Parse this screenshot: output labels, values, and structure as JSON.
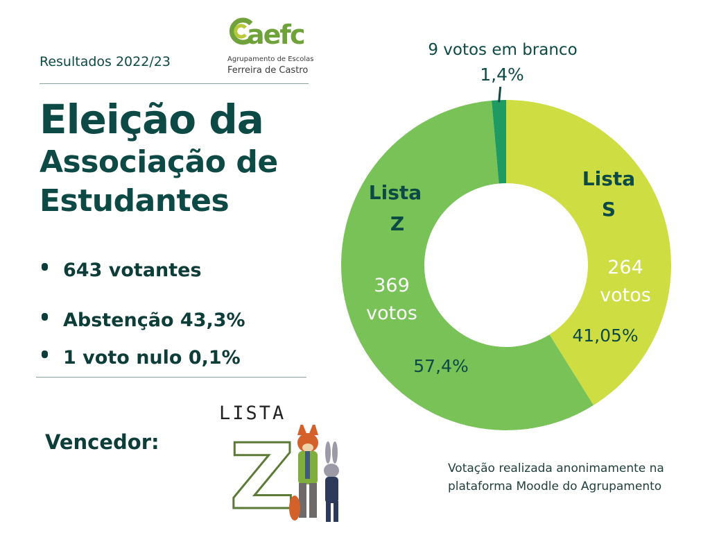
{
  "header": {
    "results_year": "Resultados 2022/23",
    "logo": {
      "mark_text": "aefc",
      "subtitle_line1": "Agrupamento de Escolas",
      "subtitle_line2": "Ferreira de Castro"
    }
  },
  "title": {
    "line1": "Eleição da",
    "line2": "Associação de",
    "line3": "Estudantes"
  },
  "stats": [
    {
      "text": "643 votantes"
    },
    {
      "text": "Abstenção 43,3%"
    },
    {
      "text": "1 voto nulo 0,1%"
    }
  ],
  "winner": {
    "label": "Vencedor:",
    "lista_word": "LISTA",
    "letter": "Z"
  },
  "note": {
    "line1": "Votação realizada anonimamente na",
    "line2": "plataforma Moodle do Agrupamento"
  },
  "colors": {
    "dark_teal": "#0d4a45",
    "lista_s": "#cedd42",
    "lista_z": "#78c257",
    "branco": "#1f9a60",
    "rule": "#8aa3a0"
  },
  "chart_data": {
    "type": "pie",
    "variant": "donut",
    "title": "",
    "slices": [
      {
        "name_line1": "Lista",
        "name_line2": "S",
        "value": 264,
        "votes_line1": "264",
        "votes_line2": "votos",
        "percent_label": "41,05%",
        "color": "#cedd42"
      },
      {
        "name_line1": "Lista",
        "name_line2": "Z",
        "value": 369,
        "votes_line1": "369",
        "votes_line2": "votos",
        "percent_label": "57,4%",
        "color": "#78c257"
      },
      {
        "name_line1": "",
        "name_line2": "",
        "value": 9,
        "callout_line1": "9 votos em branco",
        "percent_label": "1,4%",
        "color": "#1f9a60"
      }
    ],
    "start_angle": "top",
    "direction": "clockwise"
  }
}
